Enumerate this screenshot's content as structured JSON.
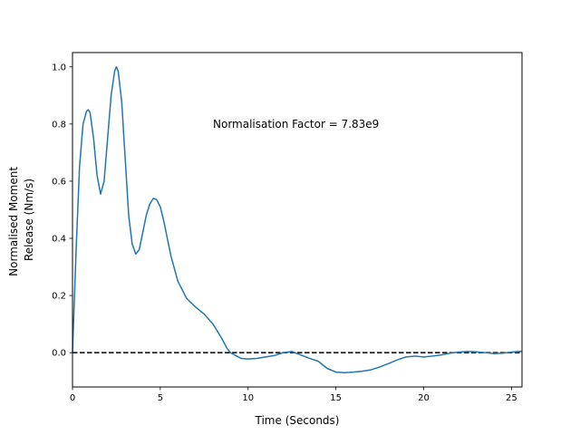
{
  "chart_data": {
    "type": "line",
    "xlabel": "Time (Seconds)",
    "ylabel_lines": [
      "Normalised Moment",
      "Release (Nm/s)"
    ],
    "xlim": [
      0,
      25.6
    ],
    "ylim": [
      -0.12,
      1.05
    ],
    "xticks": [
      0,
      5,
      10,
      15,
      20,
      25
    ],
    "yticks": [
      0.0,
      0.2,
      0.4,
      0.6,
      0.8,
      1.0
    ],
    "xtick_labels": [
      "0",
      "5",
      "10",
      "15",
      "20",
      "25"
    ],
    "ytick_labels": [
      "0.0",
      "0.2",
      "0.4",
      "0.6",
      "0.8",
      "1.0"
    ],
    "grid": false,
    "annotation": {
      "text": "Normalisation Factor = 7.83e9",
      "x": 8.0,
      "y": 0.8
    },
    "reference_line": {
      "y": 0.0,
      "style": "dashed",
      "color": "#000000"
    },
    "series": [
      {
        "color": "#1f77b4",
        "x": [
          0,
          0.2,
          0.4,
          0.6,
          0.8,
          0.9,
          1.0,
          1.2,
          1.4,
          1.6,
          1.8,
          2.0,
          2.2,
          2.4,
          2.5,
          2.6,
          2.8,
          3.0,
          3.2,
          3.4,
          3.6,
          3.8,
          4.0,
          4.2,
          4.4,
          4.6,
          4.8,
          5.0,
          5.2,
          5.4,
          5.6,
          6.0,
          6.5,
          7.0,
          7.5,
          8.0,
          8.5,
          8.8,
          9.0,
          9.3,
          9.6,
          10.0,
          10.5,
          11.0,
          11.5,
          12.0,
          12.5,
          13.0,
          13.5,
          14.0,
          14.5,
          15.0,
          15.5,
          16.0,
          16.5,
          17.0,
          17.5,
          18.0,
          18.5,
          19.0,
          19.5,
          20.0,
          20.5,
          21.0,
          21.5,
          22.0,
          22.5,
          23.0,
          23.5,
          24.0,
          24.5,
          25.0,
          25.6
        ],
        "y": [
          0.0,
          0.35,
          0.65,
          0.8,
          0.845,
          0.85,
          0.84,
          0.75,
          0.62,
          0.555,
          0.6,
          0.75,
          0.9,
          0.985,
          1.0,
          0.985,
          0.88,
          0.68,
          0.48,
          0.38,
          0.345,
          0.36,
          0.42,
          0.48,
          0.52,
          0.54,
          0.535,
          0.51,
          0.46,
          0.4,
          0.34,
          0.25,
          0.19,
          0.16,
          0.135,
          0.1,
          0.05,
          0.015,
          0.0,
          -0.01,
          -0.02,
          -0.022,
          -0.02,
          -0.015,
          -0.01,
          0.0,
          0.004,
          -0.008,
          -0.02,
          -0.03,
          -0.055,
          -0.068,
          -0.07,
          -0.068,
          -0.065,
          -0.06,
          -0.05,
          -0.038,
          -0.025,
          -0.015,
          -0.012,
          -0.015,
          -0.012,
          -0.008,
          -0.002,
          0.002,
          0.004,
          0.003,
          0.0,
          -0.003,
          -0.002,
          0.002,
          0.005
        ]
      }
    ]
  }
}
